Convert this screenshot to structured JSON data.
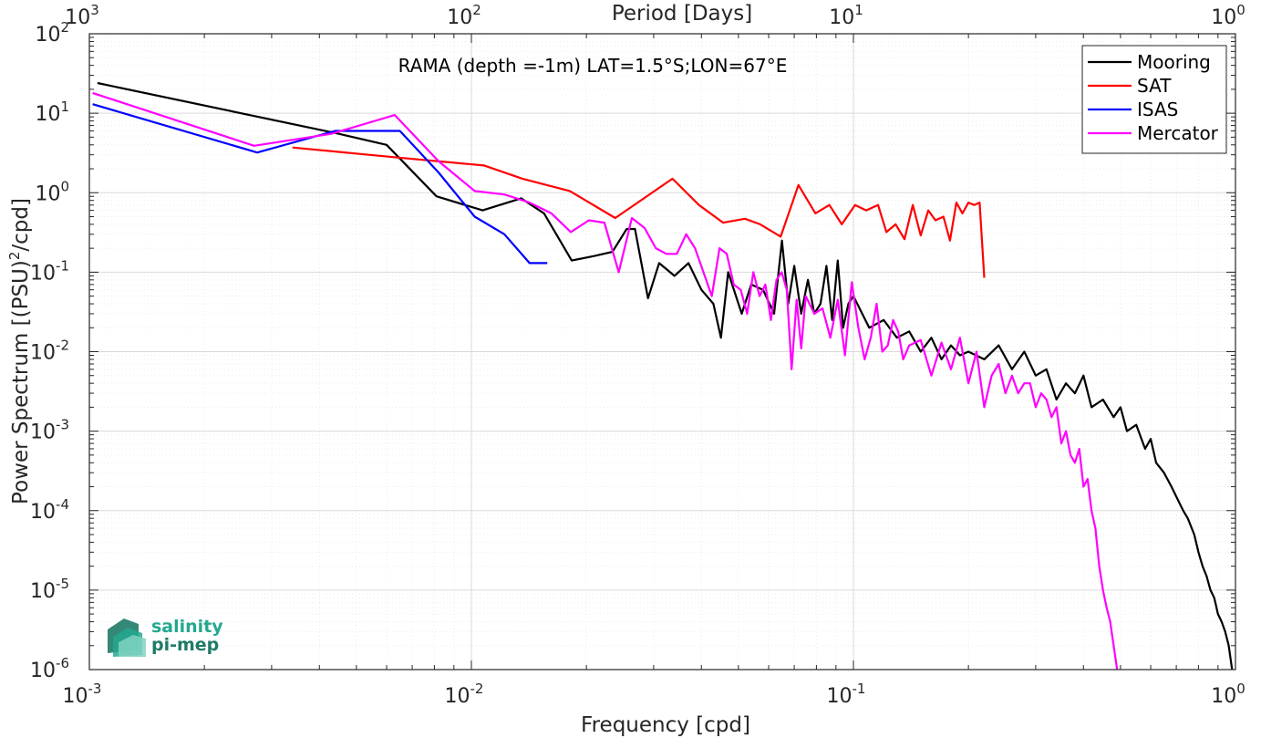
{
  "chart_data": {
    "type": "line",
    "title": "RAMA (depth =-1m) LAT=1.5°S;LON=67°E",
    "xlabel": "Frequency [cpd]",
    "ylabel": "Power Spectrum [(PSU)²/cpd]",
    "top_xlabel": "Period [Days]",
    "xscale": "log",
    "yscale": "log",
    "xlim": [
      0.001,
      1
    ],
    "ylim": [
      1e-06,
      100
    ],
    "grid": true,
    "legend_position": "top-right",
    "x_tick_labels": [
      "10-3",
      "10-2",
      "10-1",
      "100"
    ],
    "y_tick_labels": [
      "10-6",
      "10-5",
      "10-4",
      "10-3",
      "10-2",
      "10-1",
      "100",
      "101",
      "102"
    ],
    "top_tick_labels": [
      "103",
      "102",
      "101",
      "100"
    ],
    "series": [
      {
        "name": "Mooring",
        "color": "#000000",
        "x": [
          0.00105,
          0.0045,
          0.006,
          0.0081,
          0.0107,
          0.0135,
          0.0155,
          0.0183,
          0.021,
          0.0234,
          0.0255,
          0.0268,
          0.029,
          0.031,
          0.034,
          0.037,
          0.04,
          0.043,
          0.045,
          0.047,
          0.051,
          0.054,
          0.058,
          0.062,
          0.065,
          0.0675,
          0.07,
          0.073,
          0.076,
          0.079,
          0.082,
          0.085,
          0.088,
          0.091,
          0.094,
          0.097,
          0.1,
          0.11,
          0.12,
          0.13,
          0.14,
          0.15,
          0.16,
          0.17,
          0.18,
          0.19,
          0.2,
          0.22,
          0.24,
          0.26,
          0.28,
          0.3,
          0.32,
          0.34,
          0.36,
          0.38,
          0.4,
          0.42,
          0.45,
          0.48,
          0.5,
          0.52,
          0.55,
          0.58,
          0.6,
          0.62,
          0.65,
          0.68,
          0.7,
          0.73,
          0.75,
          0.78,
          0.8,
          0.82,
          0.84,
          0.86,
          0.88,
          0.9,
          0.92,
          0.94,
          0.96,
          0.98
        ],
        "y": [
          24,
          5.5,
          4,
          0.9,
          0.6,
          0.85,
          0.55,
          0.14,
          0.16,
          0.18,
          0.35,
          0.35,
          0.047,
          0.13,
          0.09,
          0.13,
          0.06,
          0.04,
          0.015,
          0.1,
          0.03,
          0.07,
          0.06,
          0.03,
          0.25,
          0.04,
          0.12,
          0.03,
          0.08,
          0.03,
          0.04,
          0.12,
          0.025,
          0.14,
          0.02,
          0.04,
          0.05,
          0.02,
          0.025,
          0.015,
          0.018,
          0.01,
          0.015,
          0.008,
          0.012,
          0.009,
          0.01,
          0.008,
          0.012,
          0.006,
          0.01,
          0.005,
          0.006,
          0.0025,
          0.004,
          0.003,
          0.005,
          0.002,
          0.0025,
          0.0015,
          0.002,
          0.001,
          0.0012,
          0.0006,
          0.0008,
          0.0004,
          0.0003,
          0.0002,
          0.00015,
          0.0001,
          8e-05,
          5e-05,
          3e-05,
          2e-05,
          1.5e-05,
          1e-05,
          8e-06,
          5e-06,
          4e-06,
          3e-06,
          2e-06,
          1e-06
        ]
      },
      {
        "name": "SAT",
        "color": "#ff0000",
        "x": [
          0.0034,
          0.0068,
          0.0108,
          0.0136,
          0.0181,
          0.0238,
          0.0336,
          0.0394,
          0.0456,
          0.052,
          0.057,
          0.0645,
          0.0718,
          0.0795,
          0.0865,
          0.0932,
          0.101,
          0.108,
          0.116,
          0.122,
          0.129,
          0.136,
          0.143,
          0.15,
          0.157,
          0.164,
          0.172,
          0.179,
          0.186,
          0.193,
          0.2,
          0.207,
          0.214,
          0.22
        ],
        "y": [
          3.7,
          2.7,
          2.2,
          1.5,
          1.05,
          0.48,
          1.5,
          0.7,
          0.42,
          0.47,
          0.4,
          0.28,
          1.25,
          0.55,
          0.7,
          0.4,
          0.7,
          0.6,
          0.7,
          0.32,
          0.4,
          0.26,
          0.7,
          0.29,
          0.6,
          0.45,
          0.5,
          0.25,
          0.75,
          0.55,
          0.75,
          0.7,
          0.75,
          0.085
        ]
      },
      {
        "name": "ISAS",
        "color": "#0000ff",
        "x": [
          0.00102,
          0.00275,
          0.0044,
          0.0065,
          0.0082,
          0.0102,
          0.0122,
          0.0142,
          0.0158
        ],
        "y": [
          13,
          3.2,
          6,
          6,
          1.8,
          0.5,
          0.3,
          0.13,
          0.13
        ]
      },
      {
        "name": "Mercator",
        "color": "#ff00ff",
        "x": [
          0.00102,
          0.0027,
          0.0043,
          0.0063,
          0.0082,
          0.0102,
          0.0122,
          0.0142,
          0.0162,
          0.0182,
          0.0203,
          0.0223,
          0.0243,
          0.0263,
          0.0284,
          0.0304,
          0.0324,
          0.0345,
          0.0365,
          0.0385,
          0.0405,
          0.0426,
          0.0446,
          0.0466,
          0.0486,
          0.0507,
          0.0527,
          0.0547,
          0.0568,
          0.0588,
          0.0608,
          0.0629,
          0.0649,
          0.0669,
          0.0689,
          0.071,
          0.073,
          0.075,
          0.079,
          0.083,
          0.087,
          0.091,
          0.095,
          0.099,
          0.103,
          0.107,
          0.111,
          0.115,
          0.119,
          0.123,
          0.127,
          0.131,
          0.135,
          0.14,
          0.15,
          0.16,
          0.17,
          0.18,
          0.19,
          0.2,
          0.21,
          0.22,
          0.23,
          0.24,
          0.25,
          0.26,
          0.27,
          0.28,
          0.29,
          0.3,
          0.31,
          0.32,
          0.33,
          0.34,
          0.35,
          0.36,
          0.37,
          0.38,
          0.39,
          0.4,
          0.41,
          0.42,
          0.43,
          0.44,
          0.45,
          0.46,
          0.47,
          0.48,
          0.49
        ],
        "y": [
          18,
          3.9,
          5.5,
          9.5,
          2.5,
          1.05,
          0.95,
          0.75,
          0.55,
          0.32,
          0.45,
          0.42,
          0.1,
          0.48,
          0.36,
          0.2,
          0.17,
          0.17,
          0.3,
          0.2,
          0.1,
          0.05,
          0.2,
          0.17,
          0.07,
          0.06,
          0.03,
          0.1,
          0.05,
          0.07,
          0.025,
          0.08,
          0.1,
          0.06,
          0.006,
          0.045,
          0.011,
          0.05,
          0.03,
          0.035,
          0.015,
          0.045,
          0.009,
          0.075,
          0.02,
          0.008,
          0.015,
          0.04,
          0.01,
          0.012,
          0.025,
          0.018,
          0.008,
          0.012,
          0.014,
          0.005,
          0.013,
          0.006,
          0.015,
          0.004,
          0.01,
          0.002,
          0.005,
          0.007,
          0.003,
          0.005,
          0.003,
          0.004,
          0.004,
          0.002,
          0.003,
          0.0025,
          0.0015,
          0.002,
          0.0007,
          0.001,
          0.0005,
          0.0004,
          0.0006,
          0.0002,
          0.00025,
          0.0001,
          6e-05,
          2e-05,
          1e-05,
          6e-06,
          4e-06,
          2e-06,
          1e-06
        ]
      }
    ]
  },
  "logo": {
    "line1": "salinity",
    "line2": "pi-mep"
  },
  "colors": {
    "axis": "#262626",
    "grid": "#dedede",
    "logo_teal": "#23a88f",
    "logo_dark": "#1f7a67"
  }
}
